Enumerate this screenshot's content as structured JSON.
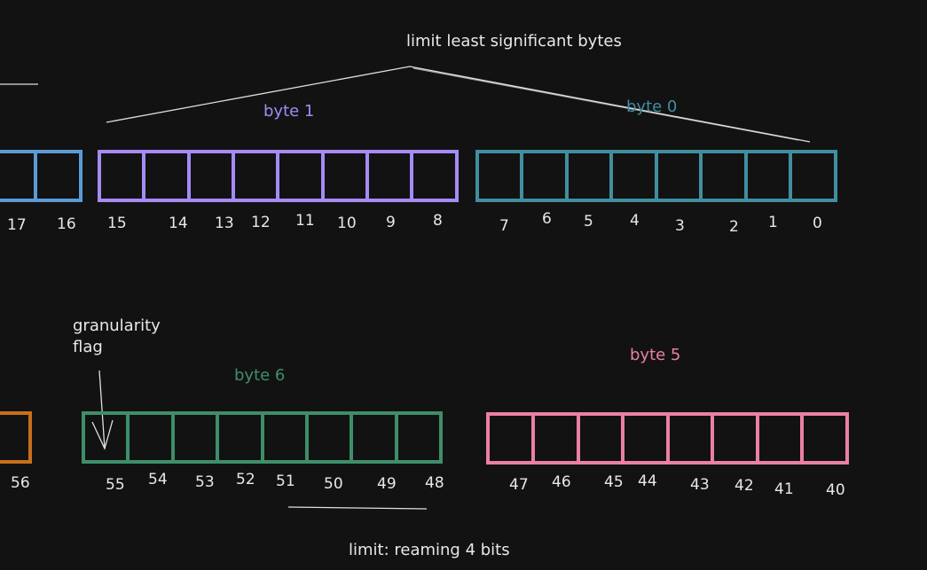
{
  "annotations": {
    "limit_lsb": "limit least significant bytes",
    "granularity_line1": "granularity",
    "granularity_line2": "flag",
    "limit_remaining": "limit: reaming 4 bits"
  },
  "colors": {
    "background": "#121212",
    "text": "#e8e8e8",
    "byte_2": "#5b9bd5",
    "byte_1": "#a48bf5",
    "byte_0": "#3f8fa0",
    "byte_7": "#c8701a",
    "byte_6": "#3e8e6a",
    "byte_5": "#ec7fa6"
  },
  "bytes": {
    "byte_1": {
      "title": "byte 1",
      "bit_labels": [
        "15",
        "14",
        "13",
        "12",
        "11",
        "10",
        "9",
        "8"
      ]
    },
    "byte_0": {
      "title": "byte 0",
      "bit_labels": [
        "7",
        "6",
        "5",
        "4",
        "3",
        "2",
        "1",
        "0"
      ]
    },
    "byte_2_partial": {
      "bit_labels": [
        "17",
        "16"
      ]
    },
    "byte_6": {
      "title": "byte 6",
      "bit_labels": [
        "55",
        "54",
        "53",
        "52",
        "51",
        "50",
        "49",
        "48"
      ]
    },
    "byte_5": {
      "title": "byte 5",
      "bit_labels": [
        "47",
        "46",
        "45",
        "44",
        "43",
        "42",
        "41",
        "40"
      ]
    },
    "byte_7_partial": {
      "bit_labels": [
        "56"
      ]
    }
  }
}
